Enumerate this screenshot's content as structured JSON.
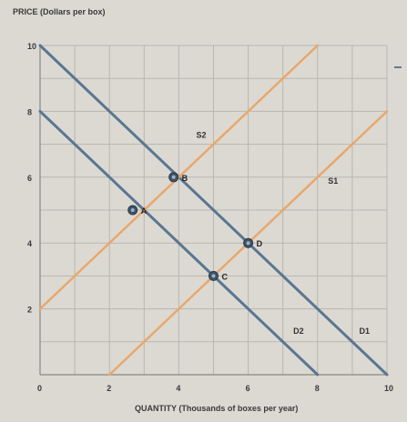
{
  "chart_data": {
    "type": "line",
    "title": "",
    "ylabel": "PRICE (Dollars per box)",
    "xlabel": "QUANTITY (Thousands of boxes per year)",
    "xlim": [
      0,
      10
    ],
    "ylim": [
      0,
      10
    ],
    "x_ticks": [
      "0",
      "2",
      "4",
      "6",
      "8",
      "10"
    ],
    "y_ticks": [
      "2",
      "4",
      "6",
      "8",
      "10"
    ],
    "grid": true,
    "series": [
      {
        "name": "D1",
        "kind": "demand",
        "color": "#5a7690",
        "x": [
          0,
          10
        ],
        "y": [
          10,
          0
        ],
        "label_at": [
          9.2,
          1.25
        ]
      },
      {
        "name": "D2",
        "kind": "demand",
        "color": "#5a7690",
        "x": [
          0,
          8
        ],
        "y": [
          8,
          0
        ],
        "label_at": [
          7.3,
          1.25
        ]
      },
      {
        "name": "S1",
        "kind": "supply",
        "color": "#e8a86a",
        "x": [
          2,
          10
        ],
        "y": [
          0,
          8
        ],
        "label_at": [
          8.3,
          5.8
        ]
      },
      {
        "name": "S2",
        "kind": "supply",
        "color": "#e8a86a",
        "x": [
          0,
          8
        ],
        "y": [
          2,
          10
        ],
        "label_at": [
          4.5,
          7.2
        ]
      }
    ],
    "points": [
      {
        "name": "A",
        "x": 2.67,
        "y": 5.0
      },
      {
        "name": "B",
        "x": 3.85,
        "y": 6.0
      },
      {
        "name": "C",
        "x": 5.0,
        "y": 3.0
      },
      {
        "name": "D",
        "x": 6.0,
        "y": 4.0
      }
    ],
    "colors": {
      "demand": "#5a7690",
      "supply": "#e8a86a",
      "grid": "#b9b6b0",
      "point": "#3e5368"
    }
  }
}
